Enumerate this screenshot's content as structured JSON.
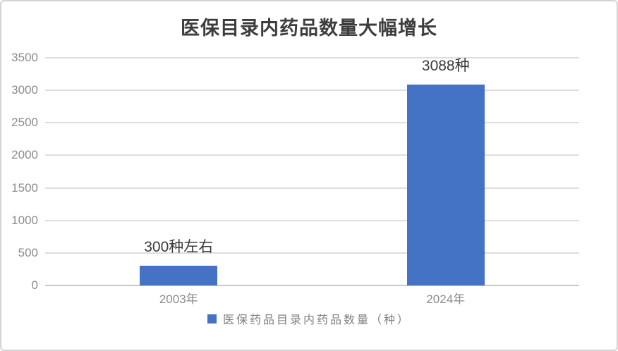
{
  "chart_data": {
    "type": "bar",
    "title": "医保目录内药品数量大幅增长",
    "categories": [
      "2003年",
      "2024年"
    ],
    "values": [
      300,
      3088
    ],
    "data_labels": [
      "300种左右",
      "3088种"
    ],
    "legend": [
      "医保药品目录内药品数量（种）"
    ],
    "legend_position": "bottom",
    "xlabel": "",
    "ylabel": "",
    "ylim": [
      0,
      3500
    ],
    "yticks": [
      3500,
      3000,
      2500,
      2000,
      1500,
      1000,
      500,
      0
    ],
    "grid": true
  },
  "colors": {
    "bar": "#4472C4",
    "gridline": "#DEDEDE",
    "axis_line": "#C8C8C8",
    "title_text": "#3D3D3D",
    "tick_text": "#8C8C8C",
    "data_label_text": "#3A3A3A",
    "legend_text": "#808080",
    "border": "#D4D4D4",
    "background": "#FFFFFF"
  }
}
